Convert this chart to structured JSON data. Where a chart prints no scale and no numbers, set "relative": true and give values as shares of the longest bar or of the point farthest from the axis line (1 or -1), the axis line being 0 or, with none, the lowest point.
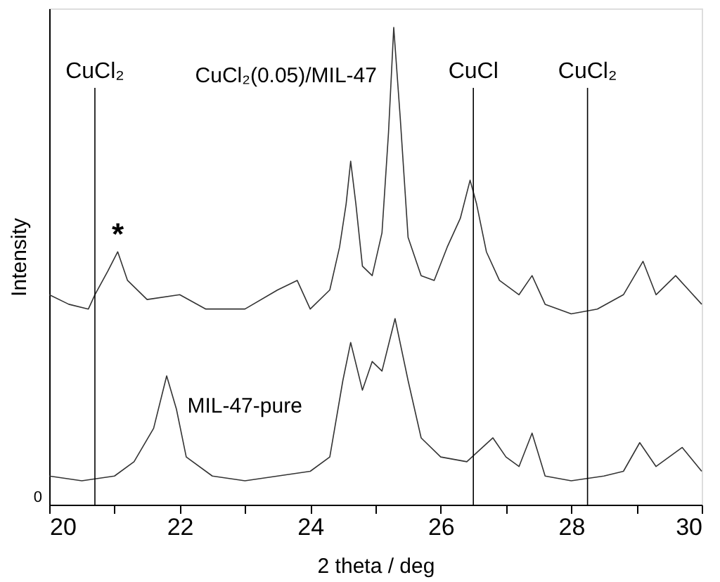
{
  "chart_data": {
    "type": "line",
    "relative": true,
    "xlabel": "2 theta / deg",
    "ylabel": "Intensity",
    "xlim": [
      20,
      30
    ],
    "xticks": [
      20,
      {
        "value": 21,
        "label": null
      },
      22,
      {
        "value": 23,
        "label": null
      },
      24,
      {
        "value": 25,
        "label": null
      },
      26,
      {
        "value": 27,
        "label": null
      },
      28,
      {
        "value": 29,
        "label": null
      },
      30
    ],
    "grid": false,
    "marker": "none",
    "line_style": "solid",
    "series": [
      {
        "name": "CuCl₂(0.05)/MIL-47",
        "color": "#333333",
        "x": [
          20.0,
          20.3,
          20.6,
          20.7,
          20.9,
          21.05,
          21.2,
          21.5,
          22.0,
          22.4,
          23.0,
          23.5,
          23.8,
          24.0,
          24.3,
          24.45,
          24.55,
          24.62,
          24.7,
          24.8,
          24.95,
          25.1,
          25.2,
          25.28,
          25.38,
          25.5,
          25.7,
          25.9,
          26.1,
          26.3,
          26.45,
          26.55,
          26.7,
          26.9,
          27.2,
          27.4,
          27.6,
          28.0,
          28.4,
          28.8,
          29.1,
          29.3,
          29.6,
          29.8,
          30.0
        ],
        "values": [
          0.44,
          0.42,
          0.41,
          0.44,
          0.49,
          0.53,
          0.47,
          0.43,
          0.44,
          0.41,
          0.41,
          0.45,
          0.47,
          0.41,
          0.45,
          0.54,
          0.63,
          0.72,
          0.63,
          0.5,
          0.48,
          0.57,
          0.78,
          1.0,
          0.81,
          0.56,
          0.48,
          0.47,
          0.54,
          0.6,
          0.68,
          0.63,
          0.53,
          0.47,
          0.44,
          0.48,
          0.42,
          0.4,
          0.41,
          0.44,
          0.51,
          0.44,
          0.48,
          0.45,
          0.42
        ]
      },
      {
        "name": "MIL-47-pure",
        "color": "#333333",
        "x": [
          20.0,
          20.5,
          21.0,
          21.3,
          21.6,
          21.8,
          21.95,
          22.1,
          22.5,
          23.0,
          23.5,
          24.0,
          24.3,
          24.5,
          24.62,
          24.8,
          24.95,
          25.1,
          25.3,
          25.5,
          25.7,
          26.0,
          26.4,
          26.8,
          27.0,
          27.2,
          27.4,
          27.6,
          28.0,
          28.5,
          28.8,
          29.05,
          29.3,
          29.7,
          30.0
        ],
        "values": [
          0.06,
          0.05,
          0.06,
          0.09,
          0.16,
          0.27,
          0.2,
          0.1,
          0.06,
          0.05,
          0.06,
          0.07,
          0.1,
          0.26,
          0.34,
          0.24,
          0.3,
          0.28,
          0.39,
          0.26,
          0.14,
          0.1,
          0.09,
          0.14,
          0.1,
          0.08,
          0.15,
          0.06,
          0.05,
          0.06,
          0.07,
          0.13,
          0.08,
          0.12,
          0.07
        ]
      }
    ],
    "ref_lines": [
      {
        "axis": "x",
        "value": 20.7,
        "label": "CuCl₂",
        "color": "#000000"
      },
      {
        "axis": "x",
        "value": 26.5,
        "label": "CuCl",
        "color": "#000000"
      },
      {
        "axis": "x",
        "value": 28.25,
        "label": "CuCl₂",
        "color": "#000000"
      }
    ],
    "annotations": [
      {
        "text": "*",
        "x": 21.05,
        "y": 0.53
      },
      "0"
    ]
  }
}
